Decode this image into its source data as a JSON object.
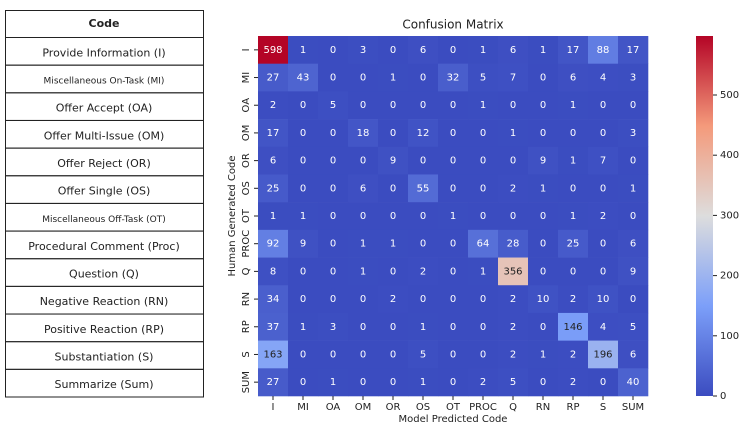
{
  "table": {
    "header": "Code",
    "rows": [
      "Provide Information (I)",
      "Miscellaneous On-Task (MI)",
      "Offer Accept (OA)",
      "Offer Multi-Issue (OM)",
      "Offer Reject (OR)",
      "Offer Single (OS)",
      "Miscellaneous Off-Task (OT)",
      "Procedural Comment (Proc)",
      "Question (Q)",
      "Negative Reaction (RN)",
      "Positive Reaction (RP)",
      "Substantiation (S)",
      "Summarize (Sum)"
    ]
  },
  "chart_data": {
    "type": "heatmap",
    "title": "Confusion Matrix",
    "x_label": "Model Predicted Code",
    "y_label": "Human Generated Code",
    "x": [
      "I",
      "MI",
      "OA",
      "OM",
      "OR",
      "OS",
      "OT",
      "PROC",
      "Q",
      "RN",
      "RP",
      "S",
      "SUM"
    ],
    "y": [
      "I",
      "MI",
      "OA",
      "OM",
      "OR",
      "OS",
      "OT",
      "PROC",
      "Q",
      "RN",
      "RP",
      "S",
      "SUM"
    ],
    "values": [
      [
        598,
        1,
        0,
        3,
        0,
        6,
        0,
        1,
        6,
        1,
        17,
        88,
        17
      ],
      [
        27,
        43,
        0,
        0,
        1,
        0,
        32,
        5,
        7,
        0,
        6,
        4,
        3
      ],
      [
        2,
        0,
        5,
        0,
        0,
        0,
        0,
        1,
        0,
        0,
        1,
        0,
        0
      ],
      [
        17,
        0,
        0,
        18,
        0,
        12,
        0,
        0,
        1,
        0,
        0,
        0,
        3
      ],
      [
        6,
        0,
        0,
        0,
        9,
        0,
        0,
        0,
        0,
        9,
        1,
        7,
        0
      ],
      [
        25,
        0,
        0,
        6,
        0,
        55,
        0,
        0,
        2,
        1,
        0,
        0,
        1
      ],
      [
        1,
        1,
        0,
        0,
        0,
        0,
        1,
        0,
        0,
        0,
        1,
        2,
        0
      ],
      [
        92,
        9,
        0,
        1,
        1,
        0,
        0,
        64,
        28,
        0,
        25,
        0,
        6
      ],
      [
        8,
        0,
        0,
        1,
        0,
        2,
        0,
        1,
        356,
        0,
        0,
        0,
        9
      ],
      [
        34,
        0,
        0,
        0,
        2,
        0,
        0,
        0,
        2,
        10,
        2,
        10,
        0
      ],
      [
        37,
        1,
        3,
        0,
        0,
        1,
        0,
        0,
        2,
        0,
        146,
        4,
        5
      ],
      [
        163,
        0,
        0,
        0,
        0,
        5,
        0,
        0,
        2,
        1,
        2,
        196,
        6
      ],
      [
        27,
        0,
        1,
        0,
        0,
        1,
        0,
        2,
        5,
        0,
        2,
        0,
        40
      ]
    ],
    "colormap": "coolwarm",
    "clim": [
      0,
      598
    ],
    "cticks": [
      0,
      100,
      200,
      300,
      400,
      500
    ]
  }
}
